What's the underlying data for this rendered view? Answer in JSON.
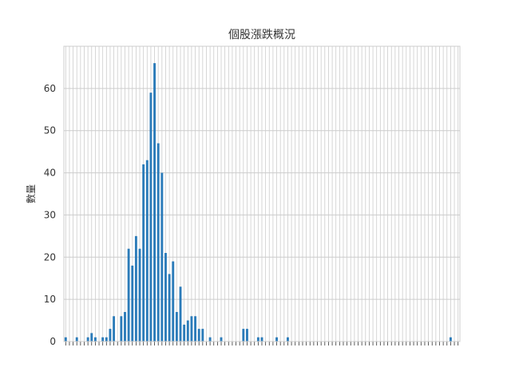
{
  "chart_data": {
    "type": "bar",
    "title": "個股漲跌概況",
    "xlabel": "",
    "ylabel": "數量",
    "ylim": [
      0,
      70
    ],
    "yticks": [
      0,
      10,
      20,
      30,
      40,
      50,
      60
    ],
    "grid": true,
    "legend": "none",
    "bar_color": "#2b7bb9",
    "grid_color": "#cccccc",
    "category_count": 107,
    "x_tick_labels": "unreadable (overlapping rotated labels)",
    "values": [
      1,
      0,
      0,
      1,
      0,
      0,
      1,
      2,
      1,
      0,
      1,
      1,
      3,
      6,
      0,
      6,
      7,
      22,
      18,
      25,
      22,
      42,
      43,
      59,
      66,
      47,
      40,
      21,
      16,
      19,
      7,
      13,
      4,
      5,
      6,
      6,
      3,
      3,
      0,
      1,
      0,
      0,
      1,
      0,
      0,
      0,
      0,
      0,
      3,
      3,
      0,
      0,
      1,
      1,
      0,
      0,
      0,
      1,
      0,
      0,
      1,
      0,
      0,
      0,
      0,
      0,
      0,
      0,
      0,
      0,
      0,
      0,
      0,
      0,
      0,
      0,
      0,
      0,
      0,
      0,
      0,
      0,
      0,
      0,
      0,
      0,
      0,
      0,
      0,
      0,
      0,
      0,
      0,
      0,
      0,
      0,
      0,
      0,
      0,
      0,
      0,
      0,
      0,
      0,
      1,
      0,
      0
    ]
  }
}
